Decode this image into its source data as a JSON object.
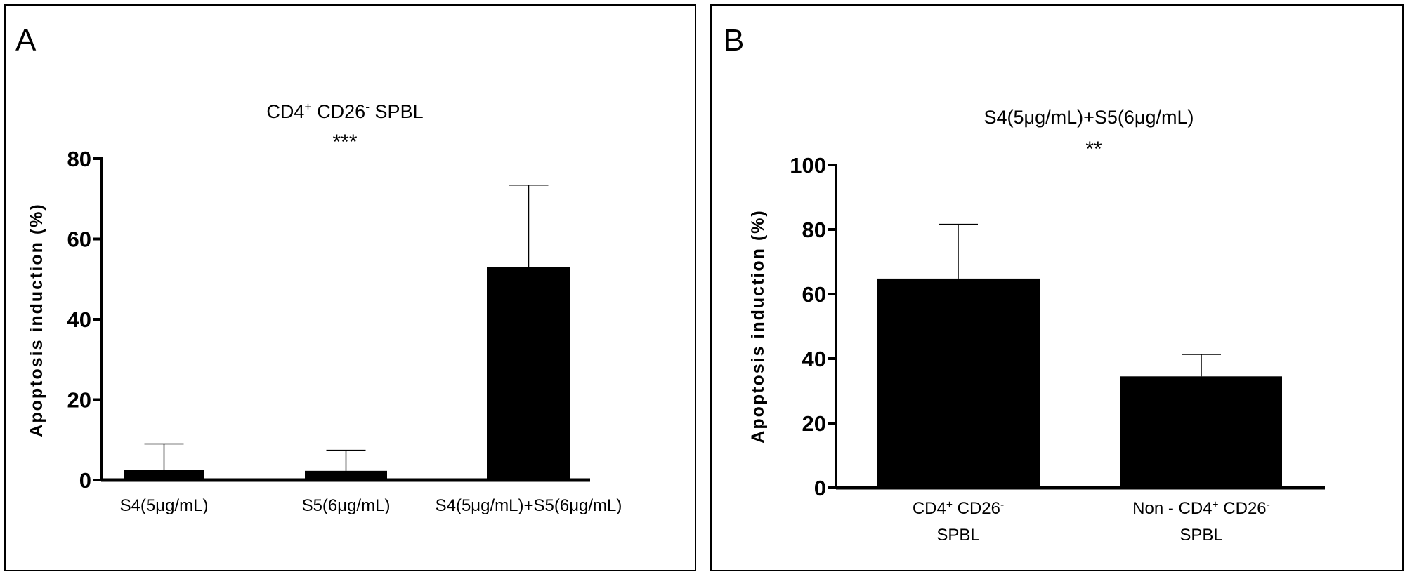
{
  "chart_data": [
    {
      "panel_letter": "A",
      "type": "bar",
      "title": [
        {
          "text": "CD4"
        },
        {
          "sup": "+"
        },
        {
          "text": " CD26"
        },
        {
          "sup": "-"
        },
        {
          "text": " SPBL"
        }
      ],
      "ylabel": "Apoptosis induction (%)",
      "xlabel": "",
      "ylim": [
        0,
        80
      ],
      "yticks": [
        0,
        20,
        40,
        60,
        80
      ],
      "categories": [
        [
          [
            {
              "text": "S4(5μg/mL)"
            }
          ]
        ],
        [
          [
            {
              "text": "S5(6μg/mL)"
            }
          ]
        ],
        [
          [
            {
              "text": "S4(5μg/mL)+S5(6μg/mL)"
            }
          ]
        ]
      ],
      "values": [
        2.5,
        2.3,
        53.1
      ],
      "error_upper": [
        9.0,
        7.4,
        73.4
      ],
      "significance": "***",
      "bar_color": "#000000",
      "grid": false
    },
    {
      "panel_letter": "B",
      "type": "bar",
      "title": [
        {
          "text": "S4(5μg/mL)+S5(6μg/mL)"
        }
      ],
      "ylabel": "Apoptosis induction (%)",
      "xlabel": "",
      "ylim": [
        0,
        100
      ],
      "yticks": [
        0,
        20,
        40,
        60,
        80,
        100
      ],
      "categories": [
        [
          [
            {
              "text": "CD4"
            },
            {
              "sup": "+"
            },
            {
              "text": " CD26"
            },
            {
              "sup": "-"
            }
          ],
          [
            {
              "text": "SPBL"
            }
          ]
        ],
        [
          [
            {
              "text": "Non - CD4"
            },
            {
              "sup": "+"
            },
            {
              "text": " CD26"
            },
            {
              "sup": "-"
            }
          ],
          [
            {
              "text": "SPBL"
            }
          ]
        ]
      ],
      "values": [
        64.8,
        34.5
      ],
      "error_upper": [
        81.6,
        41.3
      ],
      "significance": "**",
      "bar_color": "#000000",
      "grid": false
    }
  ]
}
